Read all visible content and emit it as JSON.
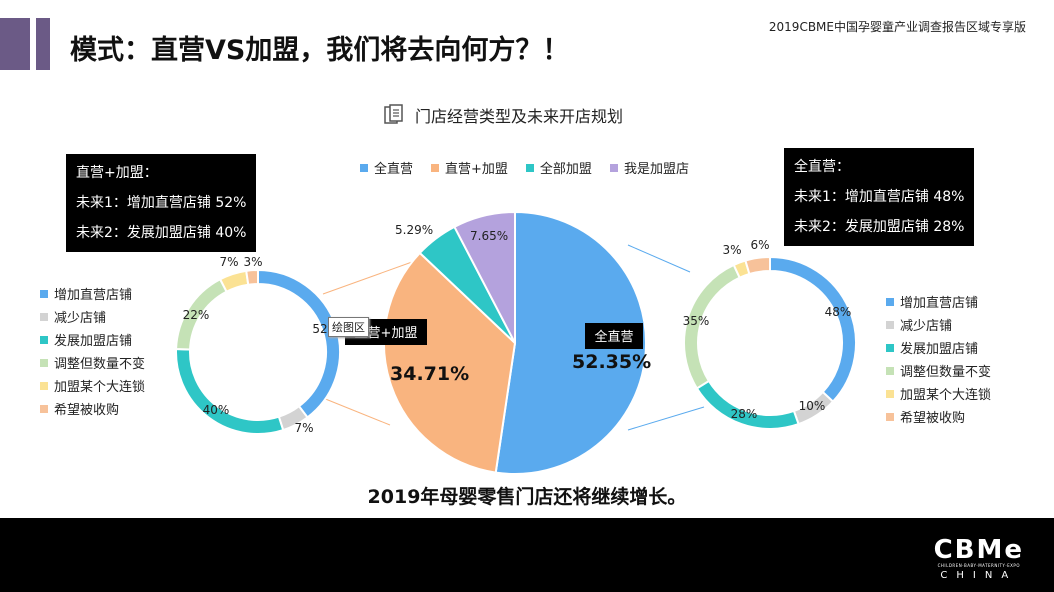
{
  "header": {
    "title": "模式：直营VS加盟，我们将去向何方？！",
    "report_label": "2019CBME中国孕婴童产业调查报告区域专享版"
  },
  "chart_title": "门店经营类型及未来开店规划",
  "tooltip": "绘图区",
  "left_callout": {
    "title": "直营+加盟：",
    "line1": "未来1：增加直营店铺  52%",
    "line2": "未来2：发展加盟店铺  40%"
  },
  "right_callout": {
    "title": "全直营：",
    "line1": "未来1：增加直营店铺 48%",
    "line2": "未来2：发展加盟店铺 28%"
  },
  "bottom_note": "2019年母婴零售门店还将继续增长。",
  "logo": {
    "main": "CBMe",
    "sub": "CHILDREN·BABY·MATERNITY·EXPO",
    "china": "CHINA"
  },
  "chart_data": [
    {
      "type": "pie",
      "name": "main",
      "categories": [
        "全直营",
        "直营+加盟",
        "全部加盟",
        "我是加盟店"
      ],
      "values": [
        52.35,
        34.71,
        5.29,
        7.65
      ],
      "labels": [
        "52.35%",
        "34.71%",
        "5.29%",
        "7.65%"
      ],
      "colors": [
        "#5aaaee",
        "#f9b47f",
        "#2ec6c6",
        "#b4a2dd"
      ],
      "legend_position": "top"
    },
    {
      "type": "pie",
      "name": "left-donut",
      "categories": [
        "增加直营店铺",
        "减少店铺",
        "发展加盟店铺",
        "调整但数量不变",
        "加盟某个大连锁",
        "希望被收购"
      ],
      "values": [
        52,
        7,
        40,
        22,
        7,
        3
      ],
      "labels": [
        "52",
        "7%",
        "40%",
        "22%",
        "7%",
        "3%"
      ],
      "colors": [
        "#5aaaee",
        "#d3d3d3",
        "#2ec6c6",
        "#c5e2b6",
        "#fbe294",
        "#f7c29a"
      ],
      "legend_position": "left"
    },
    {
      "type": "pie",
      "name": "right-donut",
      "categories": [
        "增加直营店铺",
        "减少店铺",
        "发展加盟店铺",
        "调整但数量不变",
        "加盟某个大连锁",
        "希望被收购"
      ],
      "values": [
        48,
        10,
        28,
        35,
        3,
        6
      ],
      "labels": [
        "48%",
        "10%",
        "28%",
        "35%",
        "3%",
        "6%"
      ],
      "colors": [
        "#5aaaee",
        "#d3d3d3",
        "#2ec6c6",
        "#c5e2b6",
        "#fbe294",
        "#f7c29a"
      ],
      "legend_position": "right"
    }
  ]
}
